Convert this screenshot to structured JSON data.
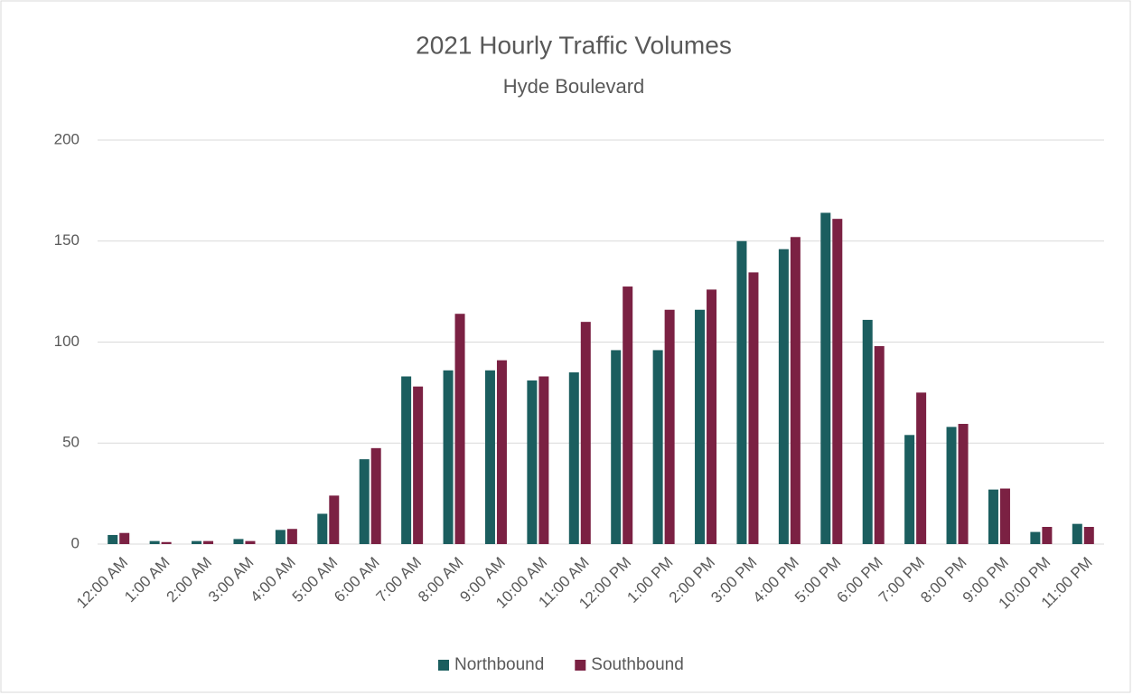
{
  "chart_data": {
    "type": "bar",
    "title": "2021 Hourly Traffic Volumes",
    "subtitle": "Hyde Boulevard",
    "categories": [
      "12:00 AM",
      "1:00 AM",
      "2:00 AM",
      "3:00 AM",
      "4:00 AM",
      "5:00 AM",
      "6:00 AM",
      "7:00 AM",
      "8:00 AM",
      "9:00 AM",
      "10:00 AM",
      "11:00 AM",
      "12:00 PM",
      "1:00 PM",
      "2:00 PM",
      "3:00 PM",
      "4:00 PM",
      "5:00 PM",
      "6:00 PM",
      "7:00 PM",
      "8:00 PM",
      "9:00 PM",
      "10:00 PM",
      "11:00 PM"
    ],
    "series": [
      {
        "name": "Northbound",
        "color": "#1b5e5f",
        "values": [
          4.5,
          1.5,
          1.5,
          2.5,
          7,
          15,
          42,
          83,
          86,
          86,
          81,
          85,
          96,
          96,
          116,
          150,
          146,
          164,
          111,
          54,
          58,
          27,
          6,
          10
        ]
      },
      {
        "name": "Southbound",
        "color": "#7b2143",
        "values": [
          5.5,
          1,
          1.5,
          1.5,
          7.5,
          24,
          47.5,
          78,
          114,
          91,
          83,
          110,
          127.5,
          116,
          126,
          134.5,
          152,
          161,
          98,
          75,
          59.5,
          27.5,
          8.5,
          8.5
        ]
      }
    ],
    "ylim": [
      0,
      200
    ],
    "yticks": [
      0,
      50,
      100,
      150,
      200
    ],
    "grid": true,
    "legend": "bottom"
  }
}
